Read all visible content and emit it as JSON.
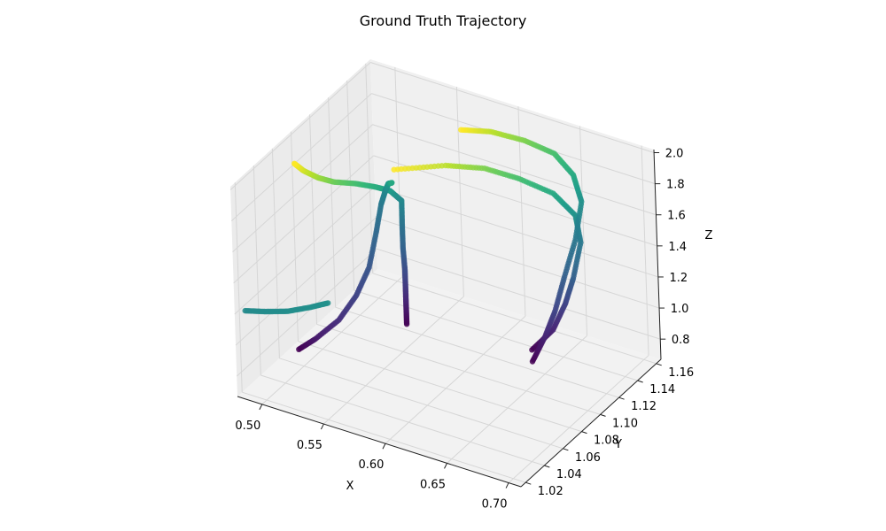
{
  "chart_data": {
    "type": "scatter3d",
    "title": "Ground Truth Trajectory",
    "xlabel": "X",
    "ylabel": "Y",
    "zlabel": "Z",
    "x_ticks": [
      "0.50",
      "0.55",
      "0.60",
      "0.65",
      "0.70"
    ],
    "y_ticks": [
      "1.02",
      "1.04",
      "1.06",
      "1.08",
      "1.10",
      "1.12",
      "1.14",
      "1.16"
    ],
    "z_ticks": [
      "0.8",
      "1.0",
      "1.2",
      "1.4",
      "1.6",
      "1.8",
      "2.0"
    ],
    "xlim": [
      0.48,
      0.71
    ],
    "ylim": [
      1.015,
      1.165
    ],
    "zlim": [
      0.67,
      2.02
    ],
    "colormap": "viridis",
    "grid": true,
    "series": [
      {
        "color_range": [
          0.0,
          1.0
        ],
        "points": [
          [
            0.553,
            1.101,
            0.85
          ],
          [
            0.553,
            1.101,
            0.97
          ],
          [
            0.553,
            1.101,
            1.08
          ],
          [
            0.553,
            1.101,
            1.2
          ],
          [
            0.552,
            1.101,
            1.34
          ],
          [
            0.552,
            1.101,
            1.5
          ],
          [
            0.553,
            1.1,
            1.65
          ],
          [
            0.547,
            1.096,
            1.72
          ],
          [
            0.54,
            1.09,
            1.76
          ],
          [
            0.53,
            1.082,
            1.8
          ],
          [
            0.52,
            1.072,
            1.84
          ],
          [
            0.512,
            1.066,
            1.88
          ],
          [
            0.505,
            1.06,
            1.94
          ],
          [
            0.5,
            1.057,
            1.99
          ]
        ]
      },
      {
        "color_range": [
          0.0,
          0.6
        ],
        "points": [
          [
            0.508,
            1.045,
            0.88
          ],
          [
            0.51,
            1.06,
            0.87
          ],
          [
            0.518,
            1.075,
            0.93
          ],
          [
            0.525,
            1.085,
            1.05
          ],
          [
            0.53,
            1.093,
            1.2
          ],
          [
            0.535,
            1.095,
            1.42
          ],
          [
            0.54,
            1.095,
            1.62
          ],
          [
            0.548,
            1.09,
            1.76
          ],
          [
            0.556,
            1.083,
            1.86
          ],
          [
            0.566,
            1.074,
            1.94
          ]
        ]
      },
      {
        "color_range": [
          0.48,
          0.5
        ],
        "points": [
          [
            0.465,
            1.045,
            1.02
          ],
          [
            0.478,
            1.05,
            1.02
          ],
          [
            0.492,
            1.055,
            1.03
          ],
          [
            0.505,
            1.062,
            1.05
          ],
          [
            0.515,
            1.068,
            1.07
          ]
        ]
      },
      {
        "color_range": [
          0.0,
          1.0
        ],
        "points": [
          [
            0.64,
            1.12,
            0.8
          ],
          [
            0.65,
            1.13,
            0.9
          ],
          [
            0.656,
            1.136,
            1.05
          ],
          [
            0.66,
            1.14,
            1.2
          ],
          [
            0.664,
            1.144,
            1.42
          ],
          [
            0.662,
            1.142,
            1.6
          ],
          [
            0.65,
            1.135,
            1.75
          ],
          [
            0.63,
            1.125,
            1.85
          ],
          [
            0.61,
            1.115,
            1.92
          ],
          [
            0.59,
            1.1,
            1.97
          ],
          [
            0.565,
            1.078,
            2.0
          ]
        ]
      },
      {
        "color_range": [
          0.0,
          1.0
        ],
        "points": [
          [
            0.648,
            1.11,
            0.8
          ],
          [
            0.655,
            1.115,
            0.95
          ],
          [
            0.66,
            1.12,
            1.1
          ],
          [
            0.664,
            1.126,
            1.3
          ],
          [
            0.667,
            1.135,
            1.5
          ],
          [
            0.665,
            1.145,
            1.68
          ],
          [
            0.655,
            1.15,
            1.8
          ],
          [
            0.64,
            1.15,
            1.9
          ],
          [
            0.62,
            1.145,
            1.96
          ],
          [
            0.598,
            1.138,
            2.0
          ],
          [
            0.58,
            1.13,
            2.01
          ]
        ]
      }
    ]
  }
}
